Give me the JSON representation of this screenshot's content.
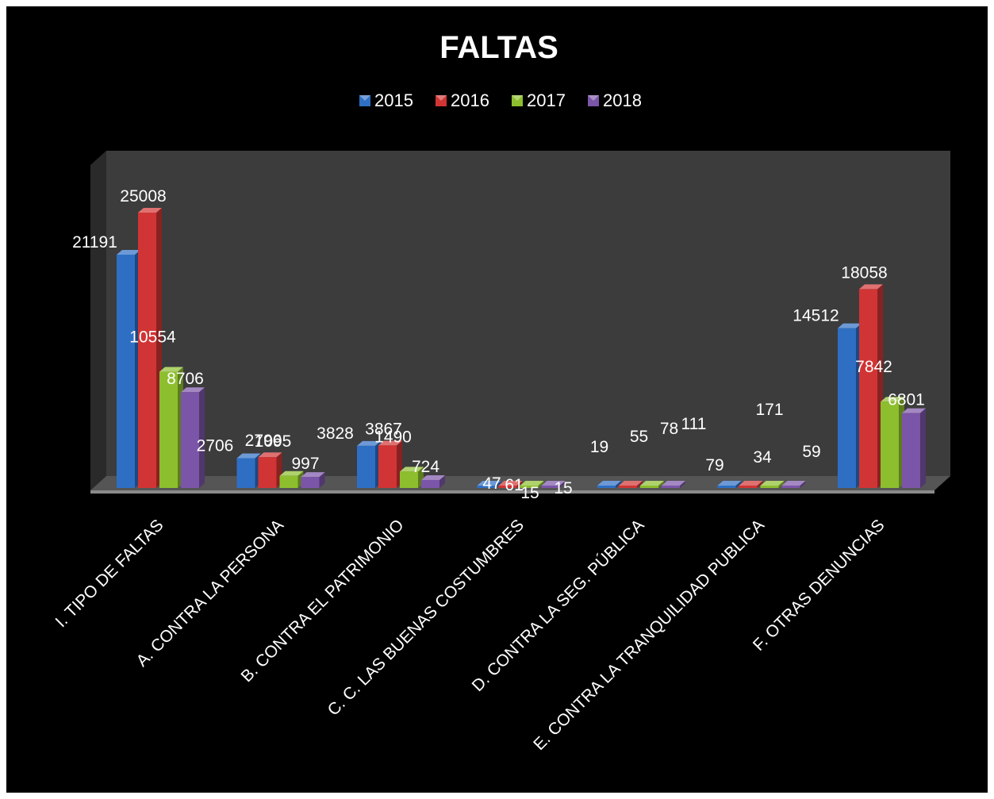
{
  "chart_data": {
    "type": "bar",
    "title": "FALTAS",
    "categories": [
      "I.  TIPO DE FALTAS",
      "A.  CONTRA LA PERSONA",
      "B.  CONTRA EL PATRIMONIO",
      "C.  C. LAS BUENAS COSTUMBRES",
      "D.  CONTRA LA SEG. PÚBLICA",
      "E.  CONTRA LA  TRANQUILIDAD PUBLICA",
      "F.  OTRAS DENUNCIAS"
    ],
    "series": [
      {
        "name": "2015",
        "color": "#2E6FC4",
        "values": [
          21191,
          2706,
          3828,
          47,
          19,
          79,
          14512
        ]
      },
      {
        "name": "2016",
        "color": "#D13434",
        "values": [
          25008,
          2796,
          3867,
          61,
          55,
          171,
          18058
        ]
      },
      {
        "name": "2017",
        "color": "#8DBE2E",
        "values": [
          10554,
          1095,
          1490,
          15,
          78,
          34,
          7842
        ]
      },
      {
        "name": "2018",
        "color": "#7B55A8",
        "values": [
          8706,
          997,
          724,
          15,
          111,
          59,
          6801
        ]
      }
    ],
    "legend_position": "top",
    "background": "#000000",
    "plot_background": "#3C3C3C",
    "grid": false
  }
}
